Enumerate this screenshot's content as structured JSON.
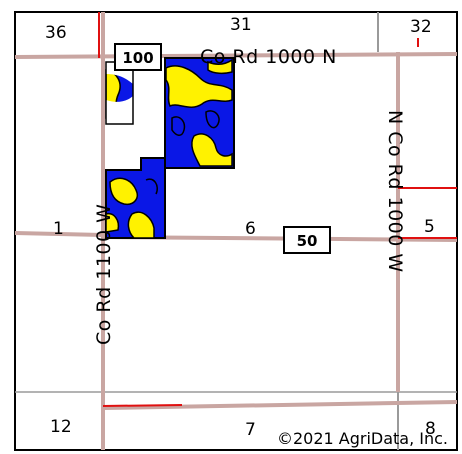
{
  "map": {
    "sections": {
      "s36": "36",
      "s31": "31",
      "s32": "32",
      "s1": "1",
      "s6": "6",
      "s5": "5",
      "s12": "12",
      "s7": "7",
      "s8": "8"
    },
    "roads": {
      "north": "Co Rd 1000 N",
      "east": "N Co Rd 1000 W",
      "west": "Co Rd 1100 W"
    },
    "shields": {
      "north": "100",
      "middle": "50"
    },
    "copyright": "©2021 AgriData, Inc.",
    "colors": {
      "soil_blue": "#0a17e6",
      "soil_yellow": "#fff200",
      "road": "#c7a09c",
      "boundary_red": "#e01010",
      "section_line": "#9a9a9a"
    }
  }
}
